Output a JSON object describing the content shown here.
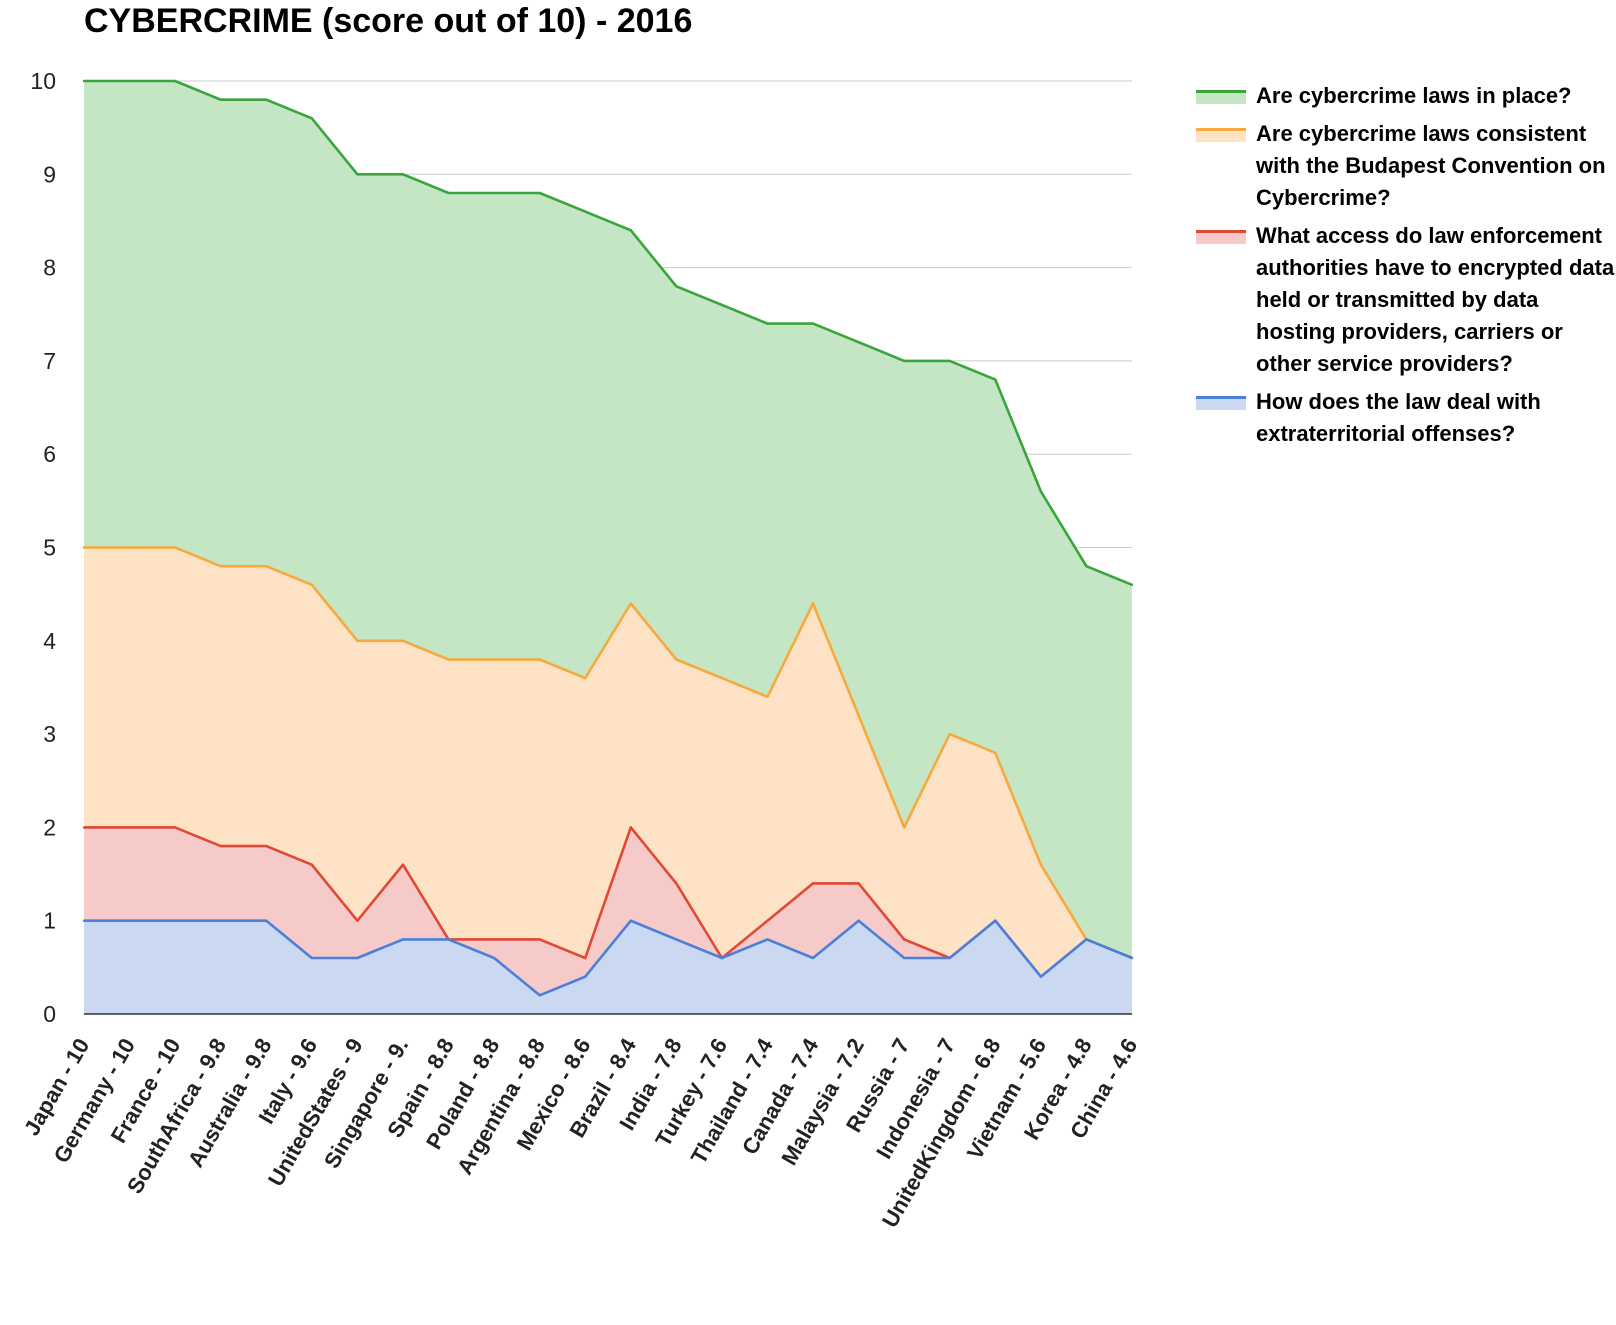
{
  "chart_data": {
    "type": "area",
    "title": "CYBERCRIME (score out of 10) - 2016",
    "ylim": [
      0,
      10
    ],
    "yticks": [
      0,
      1,
      2,
      3,
      4,
      5,
      6,
      7,
      8,
      9,
      10
    ],
    "grid": true,
    "legend_position": "right",
    "categories": [
      "Japan - 10",
      "Germany - 10",
      "France - 10",
      "SouthAfrica - 9.8",
      "Australia - 9.8",
      "Italy - 9.6",
      "UnitedStates - 9",
      "Singapore - 9.",
      "Spain - 8.8",
      "Poland - 8.8",
      "Argentina - 8.8",
      "Mexico - 8.6",
      "Brazil - 8.4",
      "India - 7.8",
      "Turkey - 7.6",
      "Thailand - 7.4",
      "Canada - 7.4",
      "Malaysia - 7.2",
      "Russia - 7",
      "Indonesia - 7",
      "UnitedKingdom - 6.8",
      "Vietnam - 5.6",
      "Korea - 4.8",
      "China - 4.6"
    ],
    "series": [
      {
        "name": "Are cybercrime laws in place?",
        "color": "#3aa53a",
        "fill": "#c5e6c5",
        "values": [
          10,
          10,
          10,
          9.8,
          9.8,
          9.6,
          9,
          9,
          8.8,
          8.8,
          8.8,
          8.6,
          8.4,
          7.8,
          7.6,
          7.4,
          7.4,
          7.2,
          7,
          7,
          6.8,
          5.6,
          4.8,
          4.6
        ]
      },
      {
        "name": "Are cybercrime laws consistent with the Budapest Convention on Cybercrime?",
        "color": "#f7a93c",
        "fill": "#fde2c5",
        "values": [
          5,
          5,
          5,
          4.8,
          4.8,
          4.6,
          4,
          4,
          3.8,
          3.8,
          3.8,
          3.6,
          4.4,
          3.8,
          3.6,
          3.4,
          4.4,
          3.2,
          2,
          3,
          2.8,
          1.6,
          0.8,
          0.6
        ]
      },
      {
        "name": "What access do law enforcement authorities have to encrypted data held or transmitted by data hosting providers, carriers or other service providers?",
        "color": "#e04a35",
        "fill": "#f6cac8",
        "values": [
          2,
          2,
          2,
          1.8,
          1.8,
          1.6,
          1,
          1.6,
          0.8,
          0.8,
          0.8,
          0.6,
          2,
          1.4,
          0.6,
          1,
          1.4,
          1.4,
          0.8,
          0.6,
          1,
          0.4,
          0.8,
          0.6
        ]
      },
      {
        "name": "How does the law deal with extraterritorial offenses?",
        "color": "#4a7fdb",
        "fill": "#cbd8f2",
        "values": [
          1,
          1,
          1,
          1,
          1,
          0.6,
          0.6,
          0.8,
          0.8,
          0.6,
          0.2,
          0.4,
          1,
          0.8,
          0.6,
          0.8,
          0.6,
          1,
          0.6,
          0.6,
          1,
          0.4,
          0.8,
          0.6
        ]
      }
    ]
  }
}
